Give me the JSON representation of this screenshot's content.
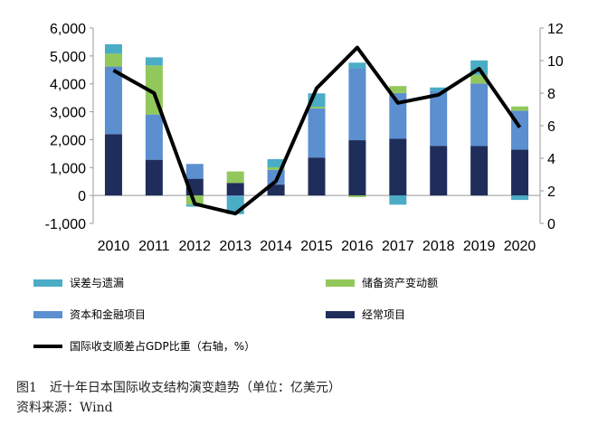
{
  "chart_data": {
    "type": "bar",
    "stacked": true,
    "categories": [
      "2010",
      "2011",
      "2012",
      "2013",
      "2014",
      "2015",
      "2016",
      "2017",
      "2018",
      "2019",
      "2020"
    ],
    "series": [
      {
        "name": "经常项目",
        "color": "#1f2d5a",
        "values": [
          2200,
          1280,
          600,
          450,
          390,
          1360,
          1980,
          2030,
          1780,
          1770,
          1640
        ]
      },
      {
        "name": "资本和金融项目",
        "color": "#5b8fd0",
        "values": [
          2420,
          1620,
          530,
          -40,
          530,
          1760,
          2580,
          1640,
          1970,
          2240,
          1400
        ]
      },
      {
        "name": "储备资产变动额",
        "color": "#92c85b",
        "values": [
          460,
          1760,
          -330,
          410,
          90,
          60,
          -60,
          250,
          0,
          310,
          150
        ]
      },
      {
        "name": "误差与遗漏",
        "color": "#4bacc6",
        "values": [
          340,
          290,
          -70,
          -630,
          290,
          480,
          200,
          -330,
          120,
          520,
          -160
        ]
      }
    ],
    "line": {
      "name": "国际收支顺差占GDP比重（右轴，%）",
      "color": "#000000",
      "values": [
        9.4,
        8.0,
        1.2,
        0.6,
        2.6,
        8.3,
        10.8,
        7.4,
        7.9,
        9.5,
        5.9
      ]
    },
    "ylim": [
      -1000,
      6000
    ],
    "y_ticks": [
      "-1,000",
      "0",
      "1,000",
      "2,000",
      "3,000",
      "4,000",
      "5,000",
      "6,000"
    ],
    "y2lim": [
      0,
      12
    ],
    "y2_ticks": [
      "0",
      "2",
      "4",
      "6",
      "8",
      "10",
      "12"
    ],
    "legend": [
      {
        "name": "误差与遗漏",
        "kind": "bar",
        "color": "#4bacc6"
      },
      {
        "name": "储备资产变动额",
        "kind": "bar",
        "color": "#92c85b"
      },
      {
        "name": "资本和金融项目",
        "kind": "bar",
        "color": "#5b8fd0"
      },
      {
        "name": "经常项目",
        "kind": "bar",
        "color": "#1f2d5a"
      },
      {
        "name": "国际收支顺差占GDP比重（右轴，%）",
        "kind": "line",
        "color": "#000000"
      }
    ],
    "legend_position": "bottom"
  },
  "caption": {
    "title": "图1　近十年日本国际收支结构演变趋势（单位：亿美元）",
    "source": "资料来源：Wind"
  }
}
